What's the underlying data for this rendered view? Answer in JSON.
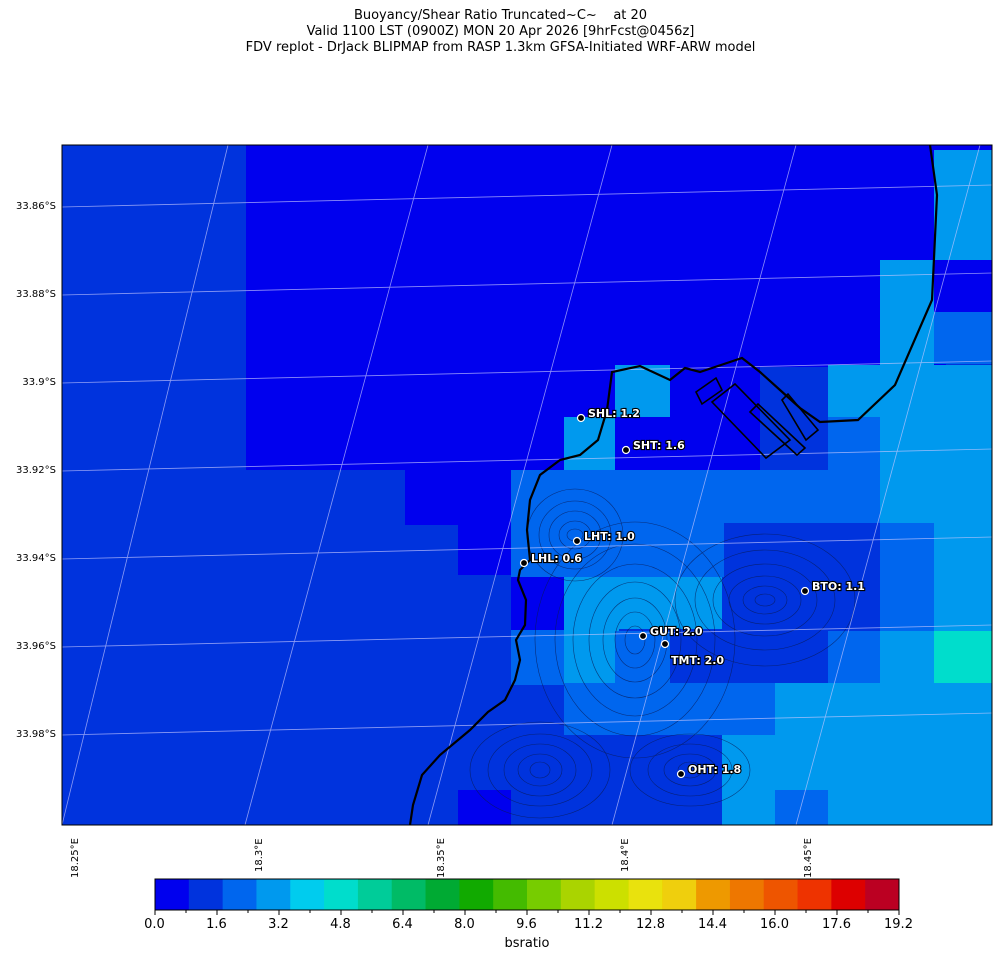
{
  "title": {
    "line1": "Buoyancy/Shear Ratio Truncated~C~    at 20",
    "line2": "Valid 1100 LST (0900Z) MON 20 Apr 2026 [9hrFcst@0456z]",
    "line3": "FDV replot - DrJack BLIPMAP from RASP 1.3km GFSA-Initiated WRF-ARW model"
  },
  "axes": {
    "lat_labels": [
      "33.86°S",
      "33.88°S",
      "33.9°S",
      "33.92°S",
      "33.94°S",
      "33.96°S",
      "33.98°S"
    ],
    "lon_labels": [
      "18.25°E",
      "18.3°E",
      "18.35°E",
      "18.4°E",
      "18.45°E"
    ]
  },
  "stations": [
    {
      "label": "SHL: 1.2"
    },
    {
      "label": "SHT: 1.6"
    },
    {
      "label": "LHT: 1.0"
    },
    {
      "label": "LHL: 0.6"
    },
    {
      "label": "BTO: 1.1"
    },
    {
      "label": "GUT: 2.0"
    },
    {
      "label": "TMT: 2.0"
    },
    {
      "label": "OHT: 1.8"
    }
  ],
  "colorbar": {
    "label": "bsratio",
    "ticks": [
      "0.0",
      "1.6",
      "3.2",
      "4.8",
      "6.4",
      "8.0",
      "9.6",
      "11.2",
      "12.8",
      "14.4",
      "16.0",
      "17.6",
      "19.2"
    ],
    "colors": [
      "#0000ee",
      "#0033dd",
      "#0066ee",
      "#0099ee",
      "#00ccee",
      "#00ddcc",
      "#00cc99",
      "#00bb66",
      "#00aa33",
      "#11aa00",
      "#44bb00",
      "#77cc00",
      "#aad400",
      "#cce000",
      "#e8e000",
      "#eecc00",
      "#ee9900",
      "#ee7700",
      "#ee5500",
      "#ee3300",
      "#dd0000",
      "#bb0022"
    ]
  },
  "chart_data": {
    "type": "heatmap",
    "variable": "bsratio",
    "scale_range": [
      0.0,
      20.0
    ],
    "stations": [
      {
        "name": "SHL",
        "value": 1.2
      },
      {
        "name": "SHT",
        "value": 1.6
      },
      {
        "name": "LHT",
        "value": 1.0
      },
      {
        "name": "LHL",
        "value": 0.6
      },
      {
        "name": "BTO",
        "value": 1.1
      },
      {
        "name": "GUT",
        "value": 2.0
      },
      {
        "name": "TMT",
        "value": 2.0
      },
      {
        "name": "OHT",
        "value": 1.8
      }
    ]
  }
}
